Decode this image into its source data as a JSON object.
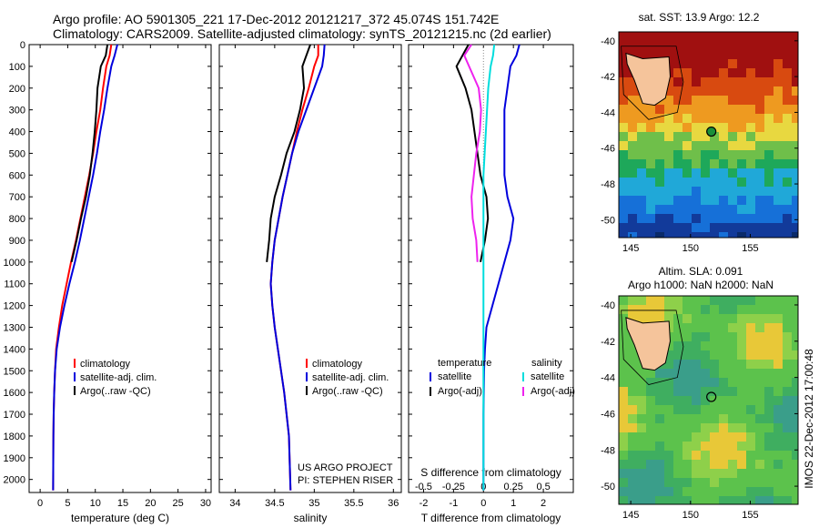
{
  "header": {
    "line1": "Argo profile: AO 5901305_221 17-Dec-2012 20121217_372 45.074S 151.742E",
    "line2": "Climatology: CARS2009. Satellite-adjusted climatology: synTS_20121215.nc (2d earlier)"
  },
  "side_label": "IMOS 22-Dec-2012 17:00:48",
  "colors": {
    "climatology": "#ff0000",
    "satellite": "#0000dd",
    "argo": "#000000",
    "salinity_sat": "#00dddd",
    "salinity_argo": "#ee22ee"
  },
  "chart_data": [
    {
      "type": "line",
      "panel": "temperature",
      "xlabel": "temperature (deg C)",
      "ylabel": "",
      "xlim": [
        -2,
        31
      ],
      "ylim": [
        2060,
        0
      ],
      "xticks": [
        0,
        5,
        10,
        15,
        20,
        25,
        30
      ],
      "yticks": [
        0,
        100,
        200,
        300,
        400,
        500,
        600,
        700,
        800,
        900,
        1000,
        1100,
        1200,
        1300,
        1400,
        1500,
        1600,
        1700,
        1800,
        1900,
        2000
      ],
      "legend": [
        "climatology",
        "satellite-adj. clim.",
        "Argo(..raw -QC)"
      ],
      "legend_position": "center",
      "series": [
        {
          "name": "climatology",
          "x": [
            12.9,
            12.6,
            12.0,
            11.4,
            10.9,
            10.2,
            9.6,
            8.9,
            8.1,
            7.3,
            6.5,
            5.6,
            4.8,
            4.0,
            3.4,
            2.9,
            2.7,
            2.55,
            2.45,
            2.4,
            2.35
          ],
          "y": [
            0,
            50,
            100,
            200,
            300,
            400,
            500,
            600,
            700,
            800,
            900,
            1000,
            1100,
            1200,
            1300,
            1400,
            1500,
            1600,
            1700,
            1800,
            2050
          ]
        },
        {
          "name": "satellite-adj. clim.",
          "x": [
            14.0,
            13.5,
            12.9,
            12.2,
            11.6,
            10.9,
            10.3,
            9.6,
            8.8,
            8.0,
            7.2,
            6.3,
            5.3,
            4.4,
            3.6,
            3.0,
            2.7,
            2.55,
            2.45,
            2.4,
            2.35
          ],
          "y": [
            0,
            50,
            100,
            200,
            300,
            400,
            500,
            600,
            700,
            800,
            900,
            1000,
            1100,
            1200,
            1300,
            1400,
            1500,
            1600,
            1700,
            1800,
            2050
          ]
        },
        {
          "name": "Argo(..raw -QC)",
          "x": [
            12.2,
            11.9,
            11.0,
            10.4,
            10.2,
            9.9,
            9.5,
            9.0,
            8.3,
            7.4,
            6.6,
            5.7
          ],
          "y": [
            0,
            50,
            100,
            200,
            300,
            400,
            500,
            600,
            700,
            800,
            900,
            1000
          ]
        }
      ]
    },
    {
      "type": "line",
      "panel": "salinity",
      "xlabel": "salinity",
      "ylabel": "",
      "xlim": [
        33.8,
        36.1
      ],
      "ylim": [
        2060,
        0
      ],
      "xticks": [
        34,
        34.5,
        35,
        35.5,
        36
      ],
      "legend": [
        "climatology",
        "satellite-adj. clim.",
        "Argo(..raw -QC)"
      ],
      "annotation": [
        "US ARGO PROJECT",
        "PI: STEPHEN RISER"
      ],
      "series": [
        {
          "name": "climatology",
          "x": [
            35.05,
            35.05,
            35.0,
            34.93,
            34.85,
            34.78,
            34.72,
            34.66,
            34.6,
            34.55,
            34.5,
            34.47,
            34.45,
            34.47,
            34.5,
            34.54,
            34.58,
            34.62,
            34.65,
            34.68,
            34.7
          ],
          "y": [
            0,
            50,
            100,
            200,
            300,
            400,
            500,
            600,
            700,
            800,
            900,
            1000,
            1100,
            1200,
            1300,
            1400,
            1500,
            1600,
            1700,
            1800,
            2050
          ]
        },
        {
          "name": "satellite-adj. clim.",
          "x": [
            35.13,
            35.12,
            35.1,
            35.0,
            34.9,
            34.8,
            34.72,
            34.66,
            34.6,
            34.55,
            34.5,
            34.47,
            34.45,
            34.47,
            34.5,
            34.54,
            34.58,
            34.62,
            34.65,
            34.68,
            34.7
          ],
          "y": [
            0,
            50,
            100,
            200,
            300,
            400,
            500,
            600,
            700,
            800,
            900,
            1000,
            1100,
            1200,
            1300,
            1400,
            1500,
            1600,
            1700,
            1800,
            2050
          ]
        },
        {
          "name": "Argo(..raw -QC)",
          "x": [
            34.95,
            34.9,
            34.85,
            34.87,
            34.82,
            34.75,
            34.65,
            34.58,
            34.5,
            34.45,
            34.43,
            34.4
          ],
          "y": [
            0,
            50,
            100,
            200,
            300,
            400,
            500,
            600,
            700,
            800,
            900,
            1000
          ]
        }
      ]
    },
    {
      "type": "line",
      "panel": "difference",
      "xlabel": "T difference from climatology",
      "xlabel_top": "S difference from climatology",
      "xlim": [
        -2.5,
        3
      ],
      "ylim": [
        2060,
        0
      ],
      "xticks": [
        -2,
        -1,
        0,
        1,
        2
      ],
      "xticks_top": [
        -0.5,
        -0.25,
        0,
        0.25,
        0.5
      ],
      "legend": [
        "temperature",
        "satellite",
        "Argo(-adj)",
        "salinity",
        "satellite",
        "Argo(-adj)"
      ],
      "series": [
        {
          "name": "temperature satellite",
          "x": [
            1.2,
            1.1,
            0.9,
            0.8,
            0.7,
            0.7,
            0.7,
            0.7,
            0.8,
            1.0,
            0.9,
            0.7,
            0.5,
            0.3,
            0.1,
            0.05,
            0.02,
            0.01,
            0,
            0,
            0
          ],
          "y": [
            0,
            50,
            100,
            200,
            300,
            400,
            500,
            600,
            700,
            800,
            900,
            1000,
            1100,
            1200,
            1300,
            1400,
            1500,
            1600,
            1700,
            1800,
            2050
          ]
        },
        {
          "name": "temperature Argo(-adj)",
          "x": [
            -0.5,
            -0.7,
            -0.9,
            -0.6,
            -0.4,
            -0.3,
            -0.2,
            -0.1,
            0.1,
            0.15,
            0.05,
            -0.1
          ],
          "y": [
            0,
            50,
            100,
            200,
            300,
            400,
            500,
            600,
            700,
            800,
            900,
            1000
          ]
        },
        {
          "name": "salinity satellite",
          "x": [
            0.09,
            0.08,
            0.06,
            0.04,
            0.03,
            0.02,
            0.01,
            0.0,
            0.0,
            0.0,
            0.0,
            0.0,
            0.0,
            0.0,
            0.0,
            0.0,
            0.0,
            0.0,
            0.0,
            0.0,
            0.0
          ],
          "y": [
            0,
            50,
            100,
            200,
            300,
            400,
            500,
            600,
            700,
            800,
            900,
            1000,
            1100,
            1200,
            1300,
            1400,
            1500,
            1600,
            1700,
            1800,
            2050
          ]
        },
        {
          "name": "salinity Argo(-adj)",
          "x": [
            -0.1,
            -0.16,
            -0.12,
            -0.04,
            -0.02,
            -0.03,
            -0.06,
            -0.08,
            -0.1,
            -0.09,
            -0.06,
            -0.05
          ],
          "y": [
            0,
            50,
            100,
            200,
            300,
            400,
            500,
            600,
            700,
            800,
            900,
            1000
          ]
        }
      ]
    },
    {
      "type": "heatmap",
      "panel": "sst_map",
      "title": "sat. SST: 13.9 Argo: 12.2",
      "xticks": [
        145,
        150,
        155
      ],
      "yticks": [
        -40,
        -42,
        -44,
        -46,
        -48,
        -50
      ],
      "xlim": [
        144,
        159
      ],
      "ylim": [
        -51,
        -39.5
      ],
      "marker": {
        "lon": 151.742,
        "lat": -45.074
      }
    },
    {
      "type": "heatmap",
      "panel": "sla_map",
      "title": "Altim. SLA: 0.091",
      "subtitle": "Argo h1000: NaN h2000: NaN",
      "xticks": [
        145,
        150,
        155
      ],
      "yticks": [
        -40,
        -42,
        -44,
        -46,
        -48,
        -50
      ],
      "xlim": [
        144,
        159
      ],
      "ylim": [
        -51,
        -39.5
      ],
      "marker": {
        "lon": 151.742,
        "lat": -45.074
      }
    }
  ]
}
